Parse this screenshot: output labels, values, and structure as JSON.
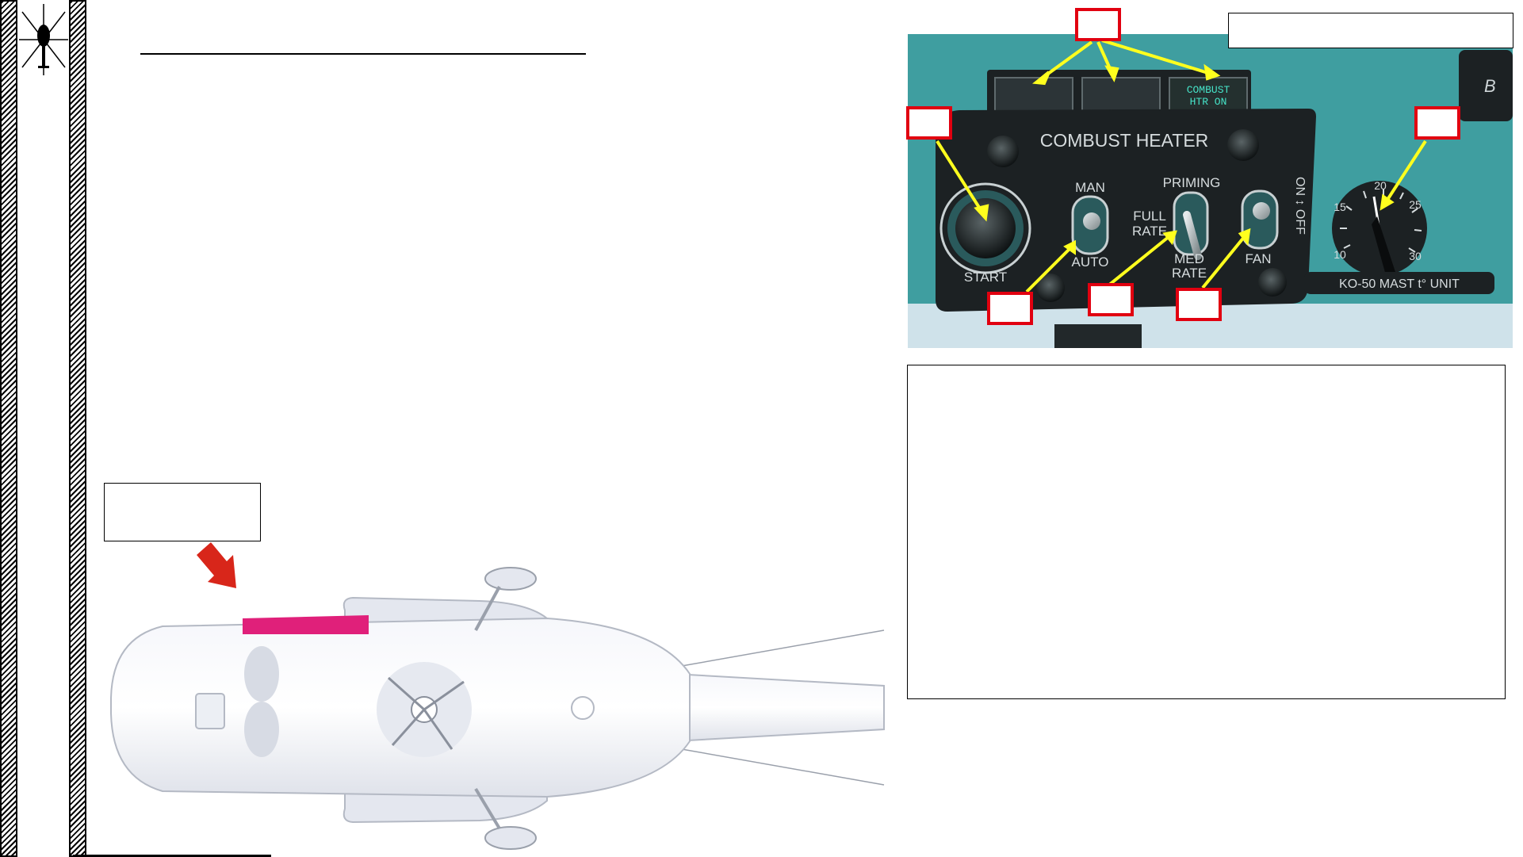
{
  "document": {
    "panel": {
      "title": "COMBUST HEATER",
      "warning_light": "COMBUST HTR ON",
      "start_label": "START",
      "man_label": "MAN",
      "auto_label": "AUTO",
      "priming_label": "PRIMING",
      "full_rate_label": "FULL RATE",
      "med_rate_label": "MED RATE",
      "fan_label": "FAN",
      "on_off_label": "ON / OFF",
      "thermostat_label": "KO-50 MAST t° UNIT",
      "dial_scale": [
        "10",
        "15",
        "20",
        "25",
        "30"
      ],
      "side_letter": "B"
    }
  },
  "colors": {
    "panel_teal": "#3f9ea0",
    "panel_black": "#1c2123",
    "callout_red": "#e10010",
    "arrow_yellow": "#ffff1e",
    "highlight_magenta": "#e0207a",
    "pointer_red": "#d8261a"
  }
}
